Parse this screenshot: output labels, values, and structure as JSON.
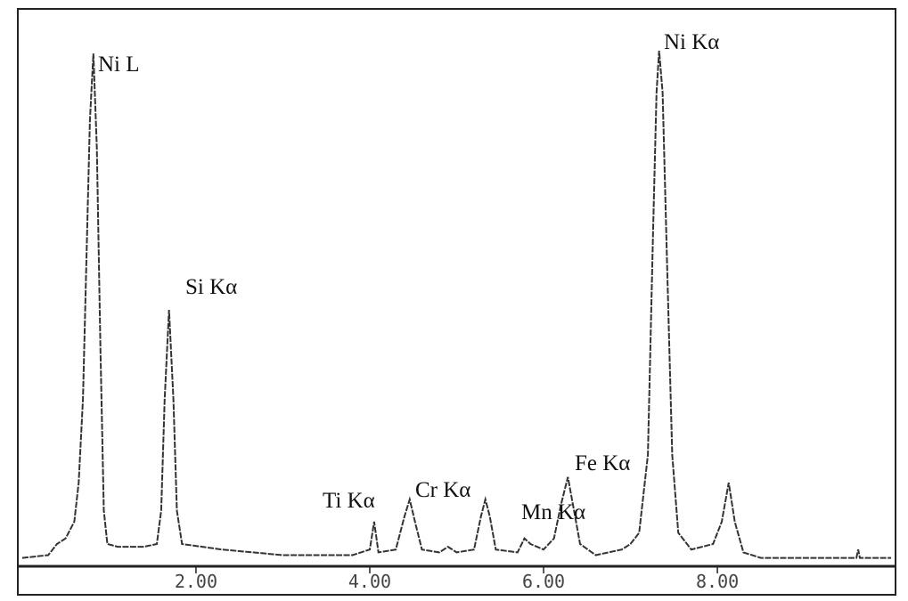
{
  "chart_data": {
    "type": "line",
    "x": [
      0.0,
      0.3,
      0.4,
      0.5,
      0.6,
      0.65,
      0.7,
      0.74,
      0.78,
      0.82,
      0.86,
      0.9,
      0.94,
      0.98,
      1.1,
      1.4,
      1.55,
      1.6,
      1.64,
      1.69,
      1.74,
      1.78,
      1.84,
      2.3,
      3.0,
      3.8,
      4.0,
      4.05,
      4.1,
      4.3,
      4.4,
      4.46,
      4.52,
      4.6,
      4.8,
      4.9,
      5.0,
      5.2,
      5.28,
      5.33,
      5.38,
      5.45,
      5.7,
      5.78,
      5.85,
      6.0,
      6.12,
      6.2,
      6.28,
      6.35,
      6.42,
      6.6,
      6.9,
      7.0,
      7.1,
      7.2,
      7.26,
      7.3,
      7.33,
      7.37,
      7.42,
      7.48,
      7.55,
      7.7,
      7.95,
      8.05,
      8.13,
      8.2,
      8.3,
      8.5,
      9.0,
      9.6,
      9.62,
      9.64,
      10.0
    ],
    "series": [
      {
        "color": "#333333",
        "values": [
          1.5,
          2,
          4,
          5,
          8,
          15,
          30,
          55,
          80,
          92,
          75,
          40,
          10,
          4,
          3.5,
          3.5,
          4,
          10,
          30,
          46,
          30,
          10,
          4,
          3,
          2,
          2,
          3,
          8,
          2.5,
          3,
          9,
          12,
          8,
          3,
          2.5,
          3.5,
          2.5,
          3,
          9,
          12,
          9,
          3,
          2.5,
          5,
          4,
          3,
          5,
          11,
          16,
          10,
          4,
          2,
          3,
          4,
          6,
          20,
          60,
          85,
          92.5,
          85,
          55,
          20,
          6,
          3,
          4,
          8,
          15,
          8,
          2.5,
          1.5,
          1.5,
          1.5,
          3,
          1.5,
          1.5
        ]
      }
    ],
    "xlim": [
      -0.05,
      10.05
    ],
    "ylim": [
      0,
      100
    ],
    "xticks": [
      {
        "value": 2,
        "label": "2.00"
      },
      {
        "value": 4,
        "label": "4.00"
      },
      {
        "value": 6,
        "label": "6.00"
      },
      {
        "value": 8,
        "label": "8.00"
      }
    ],
    "annotations": [
      "Ni L",
      "Si Kα",
      "Ti Kα",
      "Cr Kα",
      "Mn Kα",
      "Fe Kα",
      "Ni Kα"
    ]
  }
}
